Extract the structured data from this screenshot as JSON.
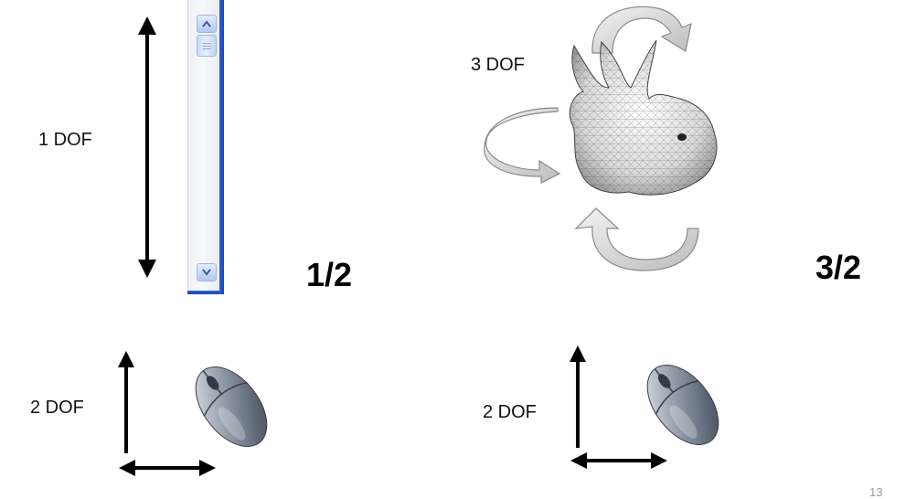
{
  "labels": {
    "one_dof": "1 DOF",
    "three_dof": "3 DOF",
    "two_dof_left": "2 DOF",
    "two_dof_right": "2 DOF"
  },
  "ratios": {
    "left": "1/2",
    "right": "3/2"
  },
  "slide_number": "13",
  "icons": {
    "scroll_up": "chevron-up-icon",
    "scroll_down": "chevron-down-icon",
    "mouse": "computer-mouse-icon",
    "bunny": "stanford-bunny-mesh"
  }
}
